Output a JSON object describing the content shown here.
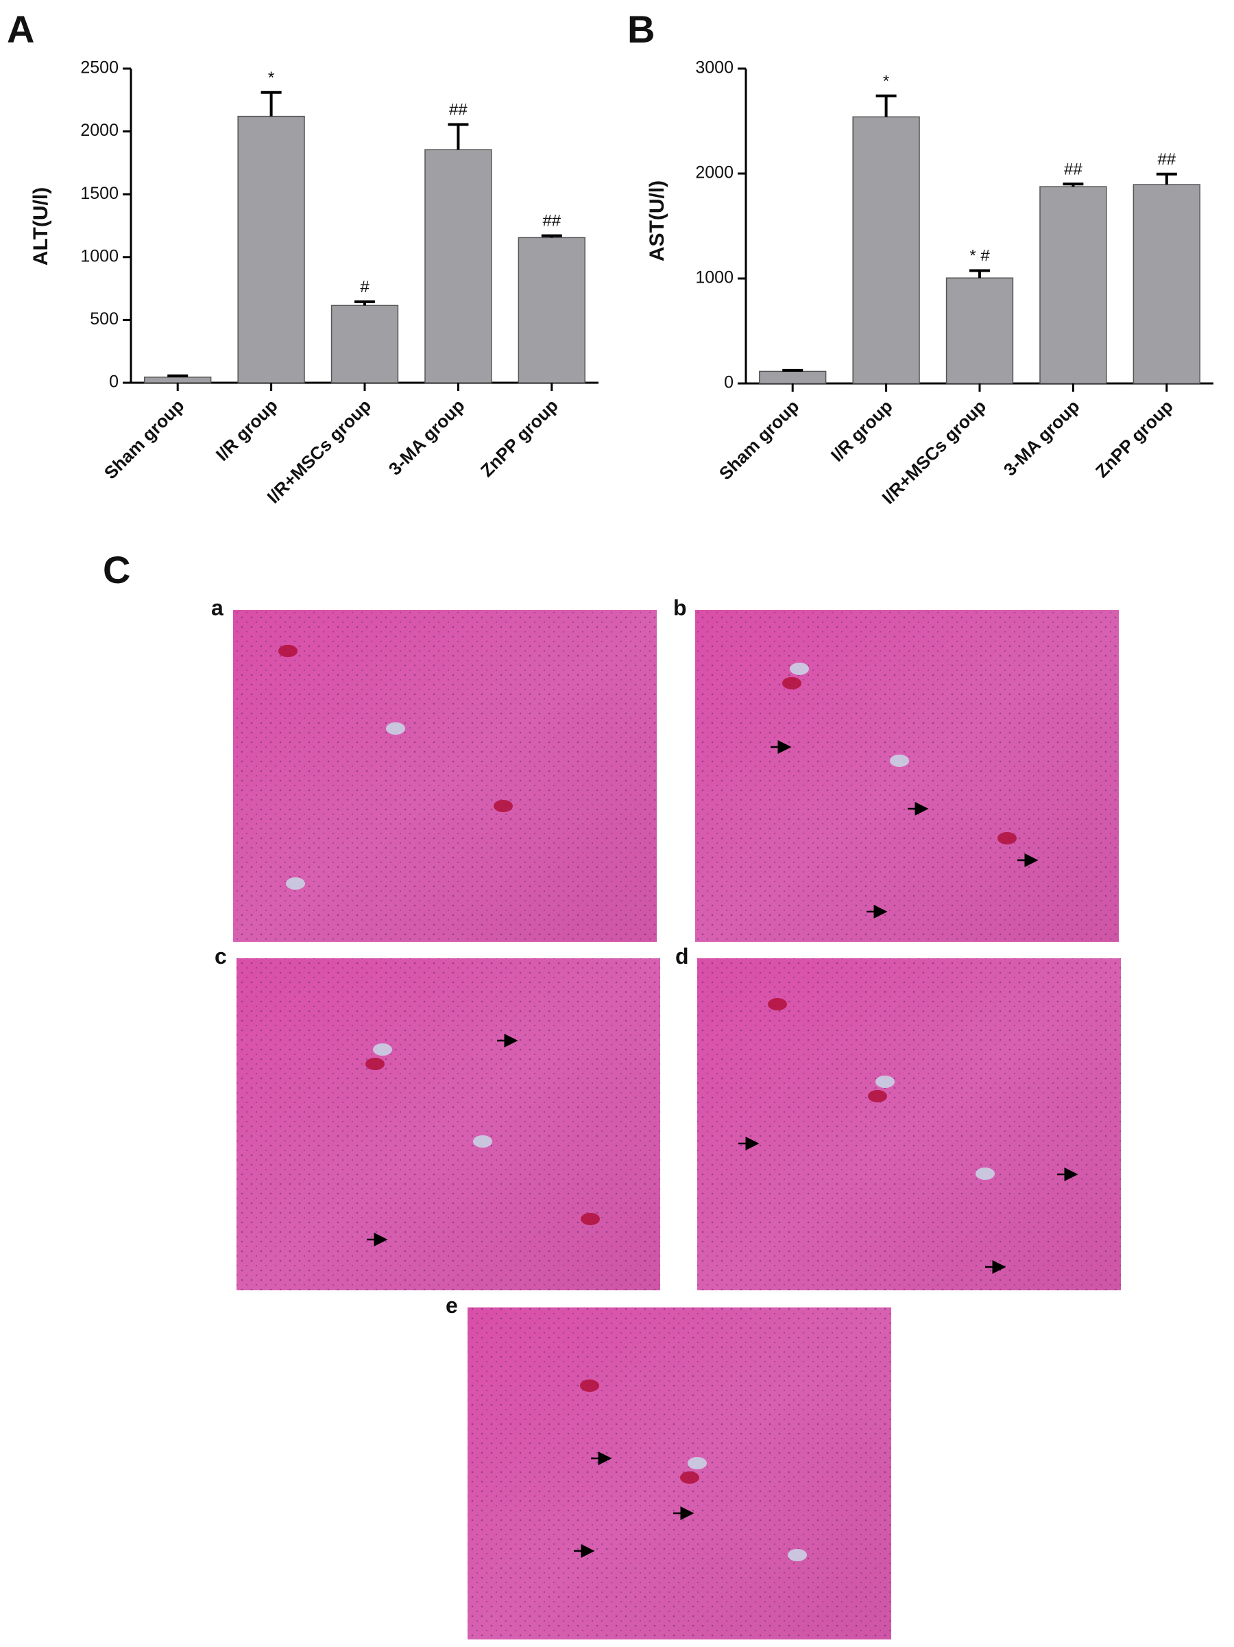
{
  "chart_data": [
    {
      "type": "bar",
      "label": "A",
      "y_label": "ALT(U/l)",
      "categories": [
        "Sham group",
        "I/R group",
        "I/R+MSCs group",
        "3-MA group",
        "ZnPP group"
      ],
      "values": [
        45,
        2120,
        615,
        1855,
        1155
      ],
      "errors": [
        10,
        190,
        30,
        200,
        15
      ],
      "annotations": [
        null,
        "*",
        "#",
        "##",
        "##"
      ],
      "color": "#a0a0a4",
      "ylim": [
        0,
        2500
      ],
      "yticks": [
        0,
        500,
        1000,
        1500,
        2000,
        2500
      ]
    },
    {
      "type": "bar",
      "label": "B",
      "y_label": "AST(U/l)",
      "categories": [
        "Sham group",
        "I/R group",
        "I/R+MSCs group",
        "3-MA group",
        "ZnPP group"
      ],
      "values": [
        115,
        2540,
        1005,
        1875,
        1895
      ],
      "errors": [
        10,
        200,
        70,
        25,
        100
      ],
      "annotations": [
        null,
        "*",
        "* #",
        "##",
        "##"
      ],
      "color": "#a0a0a4",
      "ylim": [
        0,
        3000
      ],
      "yticks": [
        0,
        1000,
        2000,
        3000
      ]
    }
  ],
  "figure_c": {
    "label": "C",
    "panels": [
      "a",
      "b",
      "c",
      "d",
      "e"
    ]
  }
}
